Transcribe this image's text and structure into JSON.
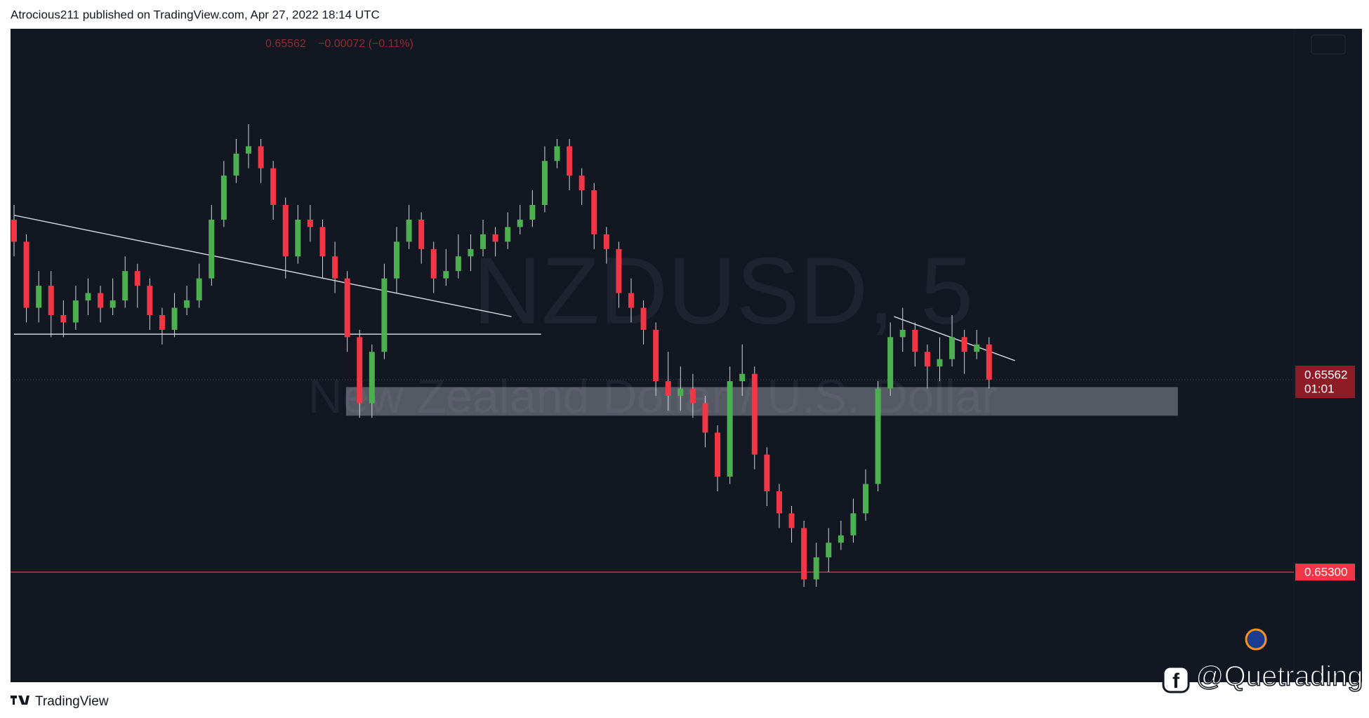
{
  "chart_data": {
    "type": "candlestick",
    "header": "Atrocious211 published on TradingView.com, Apr 27, 2022 18:14 UTC",
    "symbol": "NZDUSD, 5",
    "description": "New Zealand Dollar / U.S. Dollar",
    "legend_price": "0.65562",
    "legend_change": "−0.00072 (−0.11%)",
    "countdown": "01:01",
    "footer_brand": "TradingView",
    "watermark": "@Quetrading",
    "up_color": "#4caf50",
    "down_color": "#f23645",
    "ylim": [
      0.6515,
      0.6604
    ],
    "last_price": {
      "value": 0.65562,
      "label": "0.65562"
    },
    "levels": [
      {
        "value": 0.653,
        "label": "0.65300",
        "color": "#f23645"
      }
    ],
    "trendlines": [
      {
        "from": [
          0,
          0.65786
        ],
        "to": [
          40.3,
          0.65648
        ]
      },
      {
        "from": [
          0,
          0.65624
        ],
        "to": [
          42.7,
          0.65624
        ]
      },
      {
        "from": [
          71.3,
          0.65648
        ],
        "to": [
          81.1,
          0.65588
        ]
      }
    ],
    "zone": {
      "from": 26.9,
      "to": 94.3,
      "top": 0.65552,
      "bottom": 0.65513
    },
    "candles": [
      [
        0.6578,
        0.658,
        0.6573,
        0.6575
      ],
      [
        0.6575,
        0.6576,
        0.6564,
        0.6566
      ],
      [
        0.6566,
        0.6571,
        0.6564,
        0.6569
      ],
      [
        0.6569,
        0.6571,
        0.6562,
        0.6565
      ],
      [
        0.6565,
        0.6567,
        0.6562,
        0.6564
      ],
      [
        0.6564,
        0.6569,
        0.6563,
        0.6567
      ],
      [
        0.6567,
        0.657,
        0.6565,
        0.6568
      ],
      [
        0.6568,
        0.6569,
        0.6564,
        0.6566
      ],
      [
        0.6566,
        0.657,
        0.6565,
        0.6567
      ],
      [
        0.6567,
        0.6573,
        0.6566,
        0.6571
      ],
      [
        0.6571,
        0.6572,
        0.6566,
        0.6569
      ],
      [
        0.6569,
        0.657,
        0.6563,
        0.6565
      ],
      [
        0.6565,
        0.6566,
        0.6561,
        0.6563
      ],
      [
        0.6563,
        0.6568,
        0.6562,
        0.6566
      ],
      [
        0.6566,
        0.6569,
        0.6565,
        0.6567
      ],
      [
        0.6567,
        0.6572,
        0.6566,
        0.657
      ],
      [
        0.657,
        0.658,
        0.6569,
        0.6578
      ],
      [
        0.6578,
        0.6586,
        0.6577,
        0.6584
      ],
      [
        0.6584,
        0.6589,
        0.6583,
        0.6587
      ],
      [
        0.6587,
        0.6591,
        0.6585,
        0.6588
      ],
      [
        0.6588,
        0.6589,
        0.6583,
        0.6585
      ],
      [
        0.6585,
        0.6586,
        0.6578,
        0.658
      ],
      [
        0.658,
        0.6581,
        0.657,
        0.6573
      ],
      [
        0.6573,
        0.658,
        0.6572,
        0.6578
      ],
      [
        0.6578,
        0.658,
        0.6575,
        0.6577
      ],
      [
        0.6577,
        0.6578,
        0.657,
        0.6573
      ],
      [
        0.6573,
        0.6575,
        0.6568,
        0.657
      ],
      [
        0.657,
        0.6571,
        0.656,
        0.6562
      ],
      [
        0.6562,
        0.6563,
        0.6551,
        0.6553
      ],
      [
        0.6553,
        0.6561,
        0.6551,
        0.656
      ],
      [
        0.656,
        0.6572,
        0.6559,
        0.657
      ],
      [
        0.657,
        0.6577,
        0.6568,
        0.6575
      ],
      [
        0.6575,
        0.658,
        0.6574,
        0.6578
      ],
      [
        0.6578,
        0.6579,
        0.6572,
        0.6574
      ],
      [
        0.6574,
        0.6575,
        0.6568,
        0.657
      ],
      [
        0.657,
        0.6574,
        0.6569,
        0.6571
      ],
      [
        0.6571,
        0.6576,
        0.657,
        0.6573
      ],
      [
        0.6573,
        0.6576,
        0.6571,
        0.6574
      ],
      [
        0.6574,
        0.6578,
        0.6573,
        0.6576
      ],
      [
        0.6576,
        0.6577,
        0.6573,
        0.6575
      ],
      [
        0.6575,
        0.6579,
        0.6574,
        0.6577
      ],
      [
        0.6577,
        0.658,
        0.6576,
        0.6578
      ],
      [
        0.6578,
        0.6582,
        0.6577,
        0.658
      ],
      [
        0.658,
        0.6588,
        0.6579,
        0.6586
      ],
      [
        0.6586,
        0.6589,
        0.6585,
        0.6588
      ],
      [
        0.6588,
        0.6589,
        0.6582,
        0.6584
      ],
      [
        0.6584,
        0.6585,
        0.658,
        0.6582
      ],
      [
        0.6582,
        0.6583,
        0.6574,
        0.6576
      ],
      [
        0.6576,
        0.6577,
        0.6572,
        0.6574
      ],
      [
        0.6574,
        0.6575,
        0.6566,
        0.6568
      ],
      [
        0.6568,
        0.657,
        0.6564,
        0.6566
      ],
      [
        0.6566,
        0.6567,
        0.6561,
        0.6563
      ],
      [
        0.6563,
        0.6564,
        0.6554,
        0.6556
      ],
      [
        0.6556,
        0.656,
        0.6552,
        0.6554
      ],
      [
        0.6554,
        0.6558,
        0.6552,
        0.6555
      ],
      [
        0.6555,
        0.6557,
        0.6551,
        0.6553
      ],
      [
        0.6553,
        0.6554,
        0.6547,
        0.6549
      ],
      [
        0.6549,
        0.655,
        0.6541,
        0.6543
      ],
      [
        0.6543,
        0.6558,
        0.6542,
        0.6556
      ],
      [
        0.6556,
        0.6561,
        0.6554,
        0.6557
      ],
      [
        0.6557,
        0.6558,
        0.6544,
        0.6546
      ],
      [
        0.6546,
        0.6547,
        0.6539,
        0.6541
      ],
      [
        0.6541,
        0.6542,
        0.6536,
        0.6538
      ],
      [
        0.6538,
        0.6539,
        0.6534,
        0.6536
      ],
      [
        0.6536,
        0.6537,
        0.6528,
        0.6529
      ],
      [
        0.6529,
        0.6534,
        0.6528,
        0.6532
      ],
      [
        0.6532,
        0.6536,
        0.653,
        0.6534
      ],
      [
        0.6534,
        0.6537,
        0.6533,
        0.6535
      ],
      [
        0.6535,
        0.654,
        0.6534,
        0.6538
      ],
      [
        0.6538,
        0.6544,
        0.6537,
        0.6542
      ],
      [
        0.6542,
        0.6556,
        0.6541,
        0.6555
      ],
      [
        0.6555,
        0.6564,
        0.6554,
        0.6562
      ],
      [
        0.6562,
        0.6566,
        0.656,
        0.6563
      ],
      [
        0.6563,
        0.6564,
        0.6558,
        0.656
      ],
      [
        0.656,
        0.6561,
        0.6555,
        0.6558
      ],
      [
        0.6558,
        0.6562,
        0.6556,
        0.6559
      ],
      [
        0.6559,
        0.6565,
        0.6558,
        0.6562
      ],
      [
        0.6562,
        0.6563,
        0.6557,
        0.656
      ],
      [
        0.656,
        0.6563,
        0.6559,
        0.6561
      ],
      [
        0.6561,
        0.6562,
        0.6555,
        0.65562
      ]
    ]
  }
}
